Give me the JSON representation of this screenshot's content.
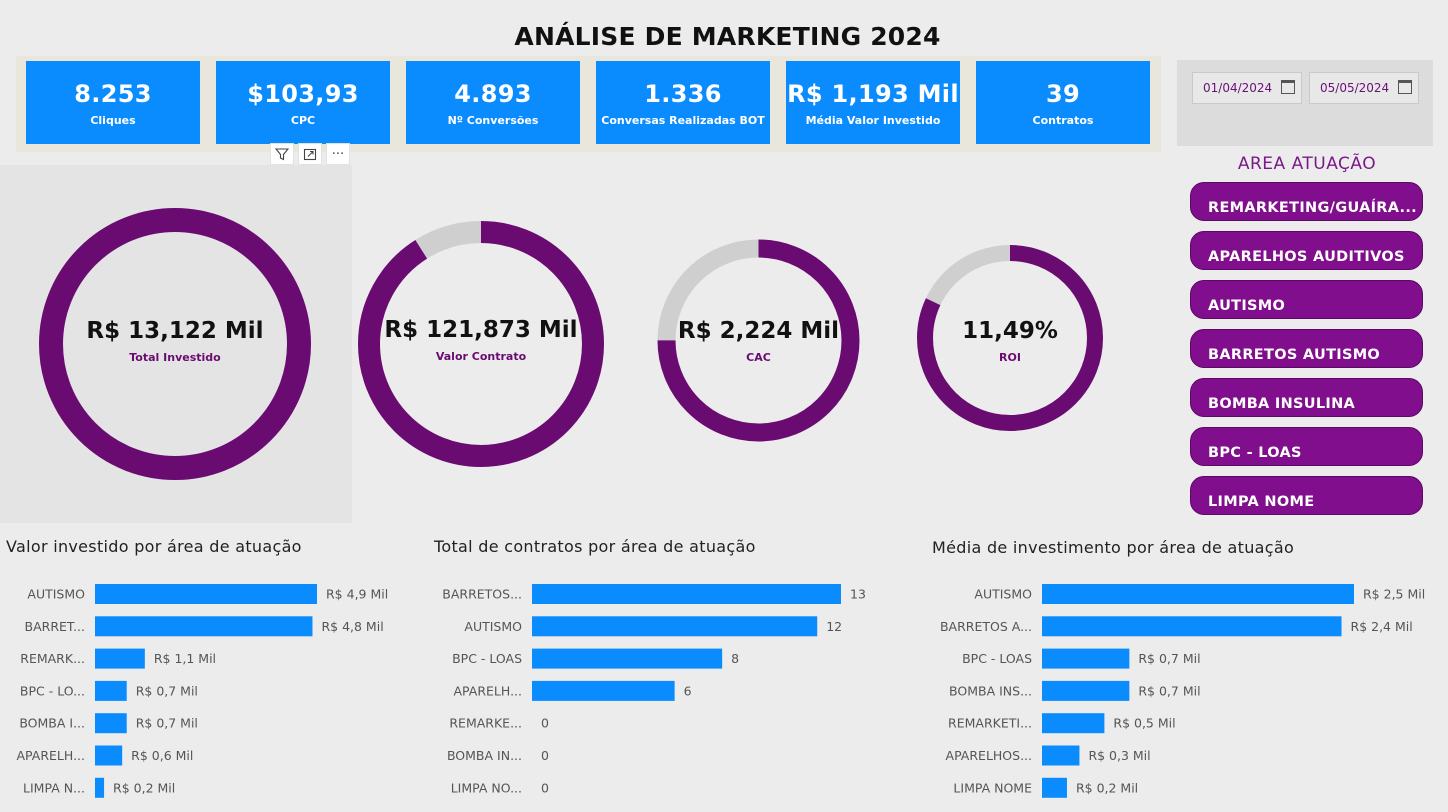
{
  "title": "ANÁLISE DE MARKETING 2024",
  "kpis": [
    {
      "value": "8.253",
      "label": "Cliques"
    },
    {
      "value": "$103,93",
      "label": "CPC"
    },
    {
      "value": "4.893",
      "label": "Nº Conversões"
    },
    {
      "value": "1.336",
      "label": "Conversas Realizadas BOT"
    },
    {
      "value": "R$ 1,193 Mil",
      "label": "Média Valor Investido"
    },
    {
      "value": "39",
      "label": "Contratos"
    }
  ],
  "visual_toolbar": {
    "filter_icon": "filter-icon",
    "focus_icon": "focus-mode-icon",
    "more_icon": "more-options-icon",
    "more_label": "···"
  },
  "date_filter": {
    "start": "01/04/2024",
    "end": "05/05/2024"
  },
  "area_slicer": {
    "title": "AREA ATUAÇÃO",
    "items": [
      "REMARKETING/GUAÍRA...",
      "APARELHOS AUDITIVOS",
      "AUTISMO",
      "BARRETOS AUTISMO",
      "BOMBA INSULINA",
      "BPC - LOAS",
      "LIMPA NOME"
    ]
  },
  "gauges": [
    {
      "value": "R$ 13,122 Mil",
      "label": "Total Investido",
      "fill": 1.0
    },
    {
      "value": "R$ 121,873 Mil",
      "label": "Valor Contrato",
      "fill": 0.91
    },
    {
      "value": "R$ 2,224 Mil",
      "label": "CAC",
      "fill": 0.75
    },
    {
      "value": "11,49%",
      "label": "ROI",
      "fill": 0.82
    }
  ],
  "colors": {
    "kpi": "#0a8cff",
    "purple": "#6a0b72",
    "donut_track": "#cfcfcf",
    "bar": "#0a8cff",
    "slicer": "#810e8c"
  },
  "chart_data": [
    {
      "type": "bar",
      "orientation": "horizontal",
      "title": "Valor investido por área de atuação",
      "categories": [
        "AUTISMO",
        "BARRET...",
        "REMARK...",
        "BPC - LO...",
        "BOMBA I...",
        "APARELH...",
        "LIMPA N..."
      ],
      "values": [
        4.9,
        4.8,
        1.1,
        0.7,
        0.7,
        0.6,
        0.2
      ],
      "value_labels": [
        "R$ 4,9 Mil",
        "R$ 4,8 Mil",
        "R$ 1,1 Mil",
        "R$ 0,7 Mil",
        "R$ 0,7 Mil",
        "R$ 0,6 Mil",
        "R$ 0,2 Mil"
      ]
    },
    {
      "type": "bar",
      "orientation": "horizontal",
      "title": "Total de contratos por área de atuação",
      "categories": [
        "BARRETOS...",
        "AUTISMO",
        "BPC - LOAS",
        "APARELH...",
        "REMARKE...",
        "BOMBA IN...",
        "LIMPA NO..."
      ],
      "values": [
        13,
        12,
        8,
        6,
        0,
        0,
        0
      ],
      "value_labels": [
        "13",
        "12",
        "8",
        "6",
        "0",
        "0",
        "0"
      ]
    },
    {
      "type": "bar",
      "orientation": "horizontal",
      "title": "Média de investimento por área de atuação",
      "categories": [
        "AUTISMO",
        "BARRETOS A...",
        "BPC - LOAS",
        "BOMBA INS...",
        "REMARKETI...",
        "APARELHOS...",
        "LIMPA NOME"
      ],
      "values": [
        2.5,
        2.4,
        0.7,
        0.7,
        0.5,
        0.3,
        0.2
      ],
      "value_labels": [
        "R$ 2,5 Mil",
        "R$ 2,4 Mil",
        "R$ 0,7 Mil",
        "R$ 0,7 Mil",
        "R$ 0,5 Mil",
        "R$ 0,3 Mil",
        "R$ 0,2 Mil"
      ]
    }
  ]
}
